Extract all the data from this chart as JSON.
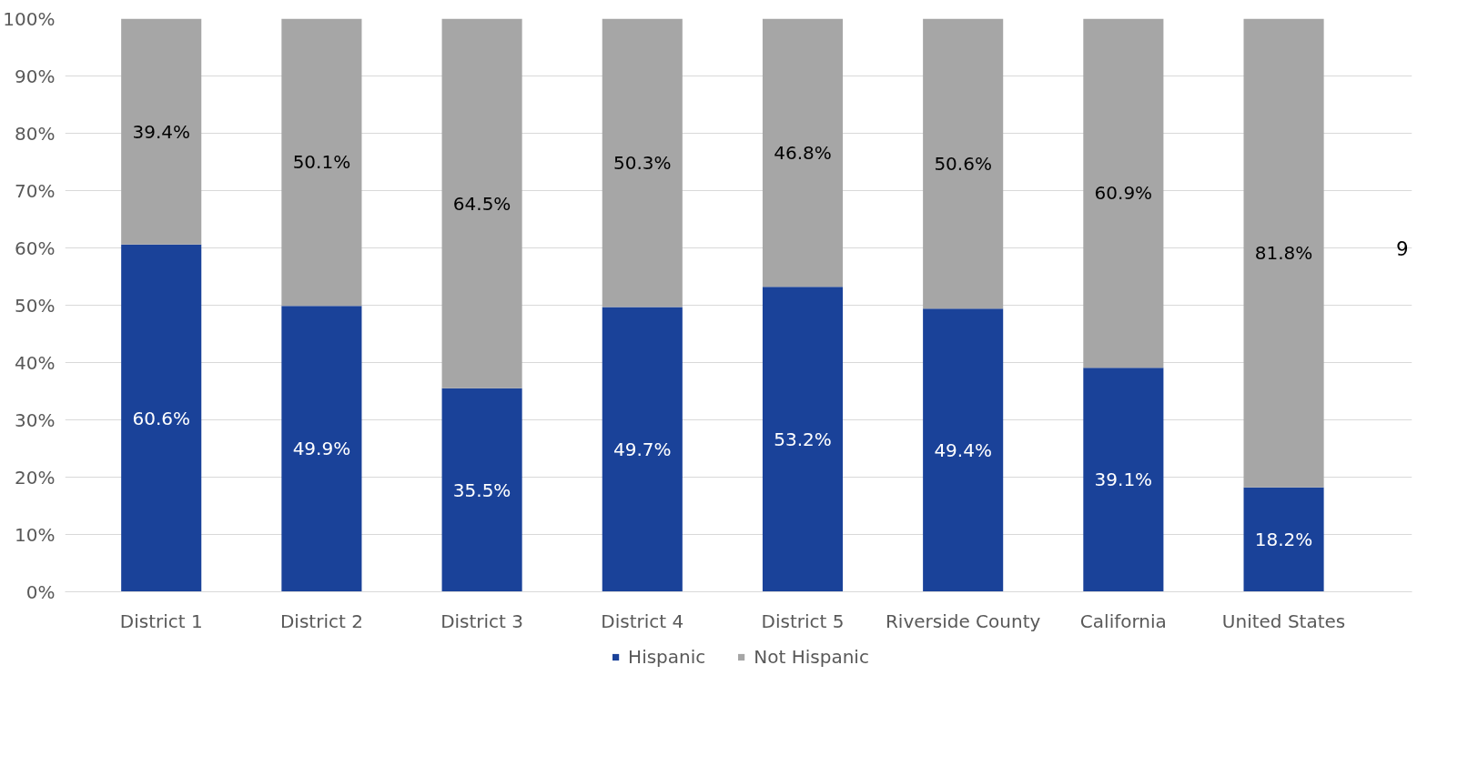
{
  "chart_data": {
    "type": "bar",
    "stacked": true,
    "categories": [
      "District 1",
      "District 2",
      "District 3",
      "District 4",
      "District 5",
      "Riverside County",
      "California",
      "United States"
    ],
    "series": [
      {
        "name": "Hispanic",
        "color": "#1a4299",
        "values": [
          60.6,
          49.9,
          35.5,
          49.7,
          53.2,
          49.4,
          39.1,
          18.2
        ],
        "value_labels": [
          "60.6%",
          "49.9%",
          "35.5%",
          "49.7%",
          "53.2%",
          "49.4%",
          "39.1%",
          "18.2%"
        ]
      },
      {
        "name": "Not Hispanic",
        "color": "#a6a6a6",
        "values": [
          39.4,
          50.1,
          64.5,
          50.3,
          46.8,
          50.6,
          60.9,
          81.8
        ],
        "value_labels": [
          "39.4%",
          "50.1%",
          "64.5%",
          "50.3%",
          "46.8%",
          "50.6%",
          "60.9%",
          "81.8%"
        ]
      }
    ],
    "ylim": [
      0,
      100
    ],
    "yticks": [
      {
        "value": 0,
        "label": "0%"
      },
      {
        "value": 10,
        "label": "10%"
      },
      {
        "value": 20,
        "label": "20%"
      },
      {
        "value": 30,
        "label": "30%"
      },
      {
        "value": 40,
        "label": "40%"
      },
      {
        "value": 50,
        "label": "50%"
      },
      {
        "value": 60,
        "label": "60%"
      },
      {
        "value": 70,
        "label": "70%"
      },
      {
        "value": 80,
        "label": "80%"
      },
      {
        "value": 90,
        "label": "90%"
      },
      {
        "value": 100,
        "label": "100%"
      }
    ],
    "grid": "y",
    "legend": "bottom",
    "annotations": [
      "9"
    ]
  }
}
